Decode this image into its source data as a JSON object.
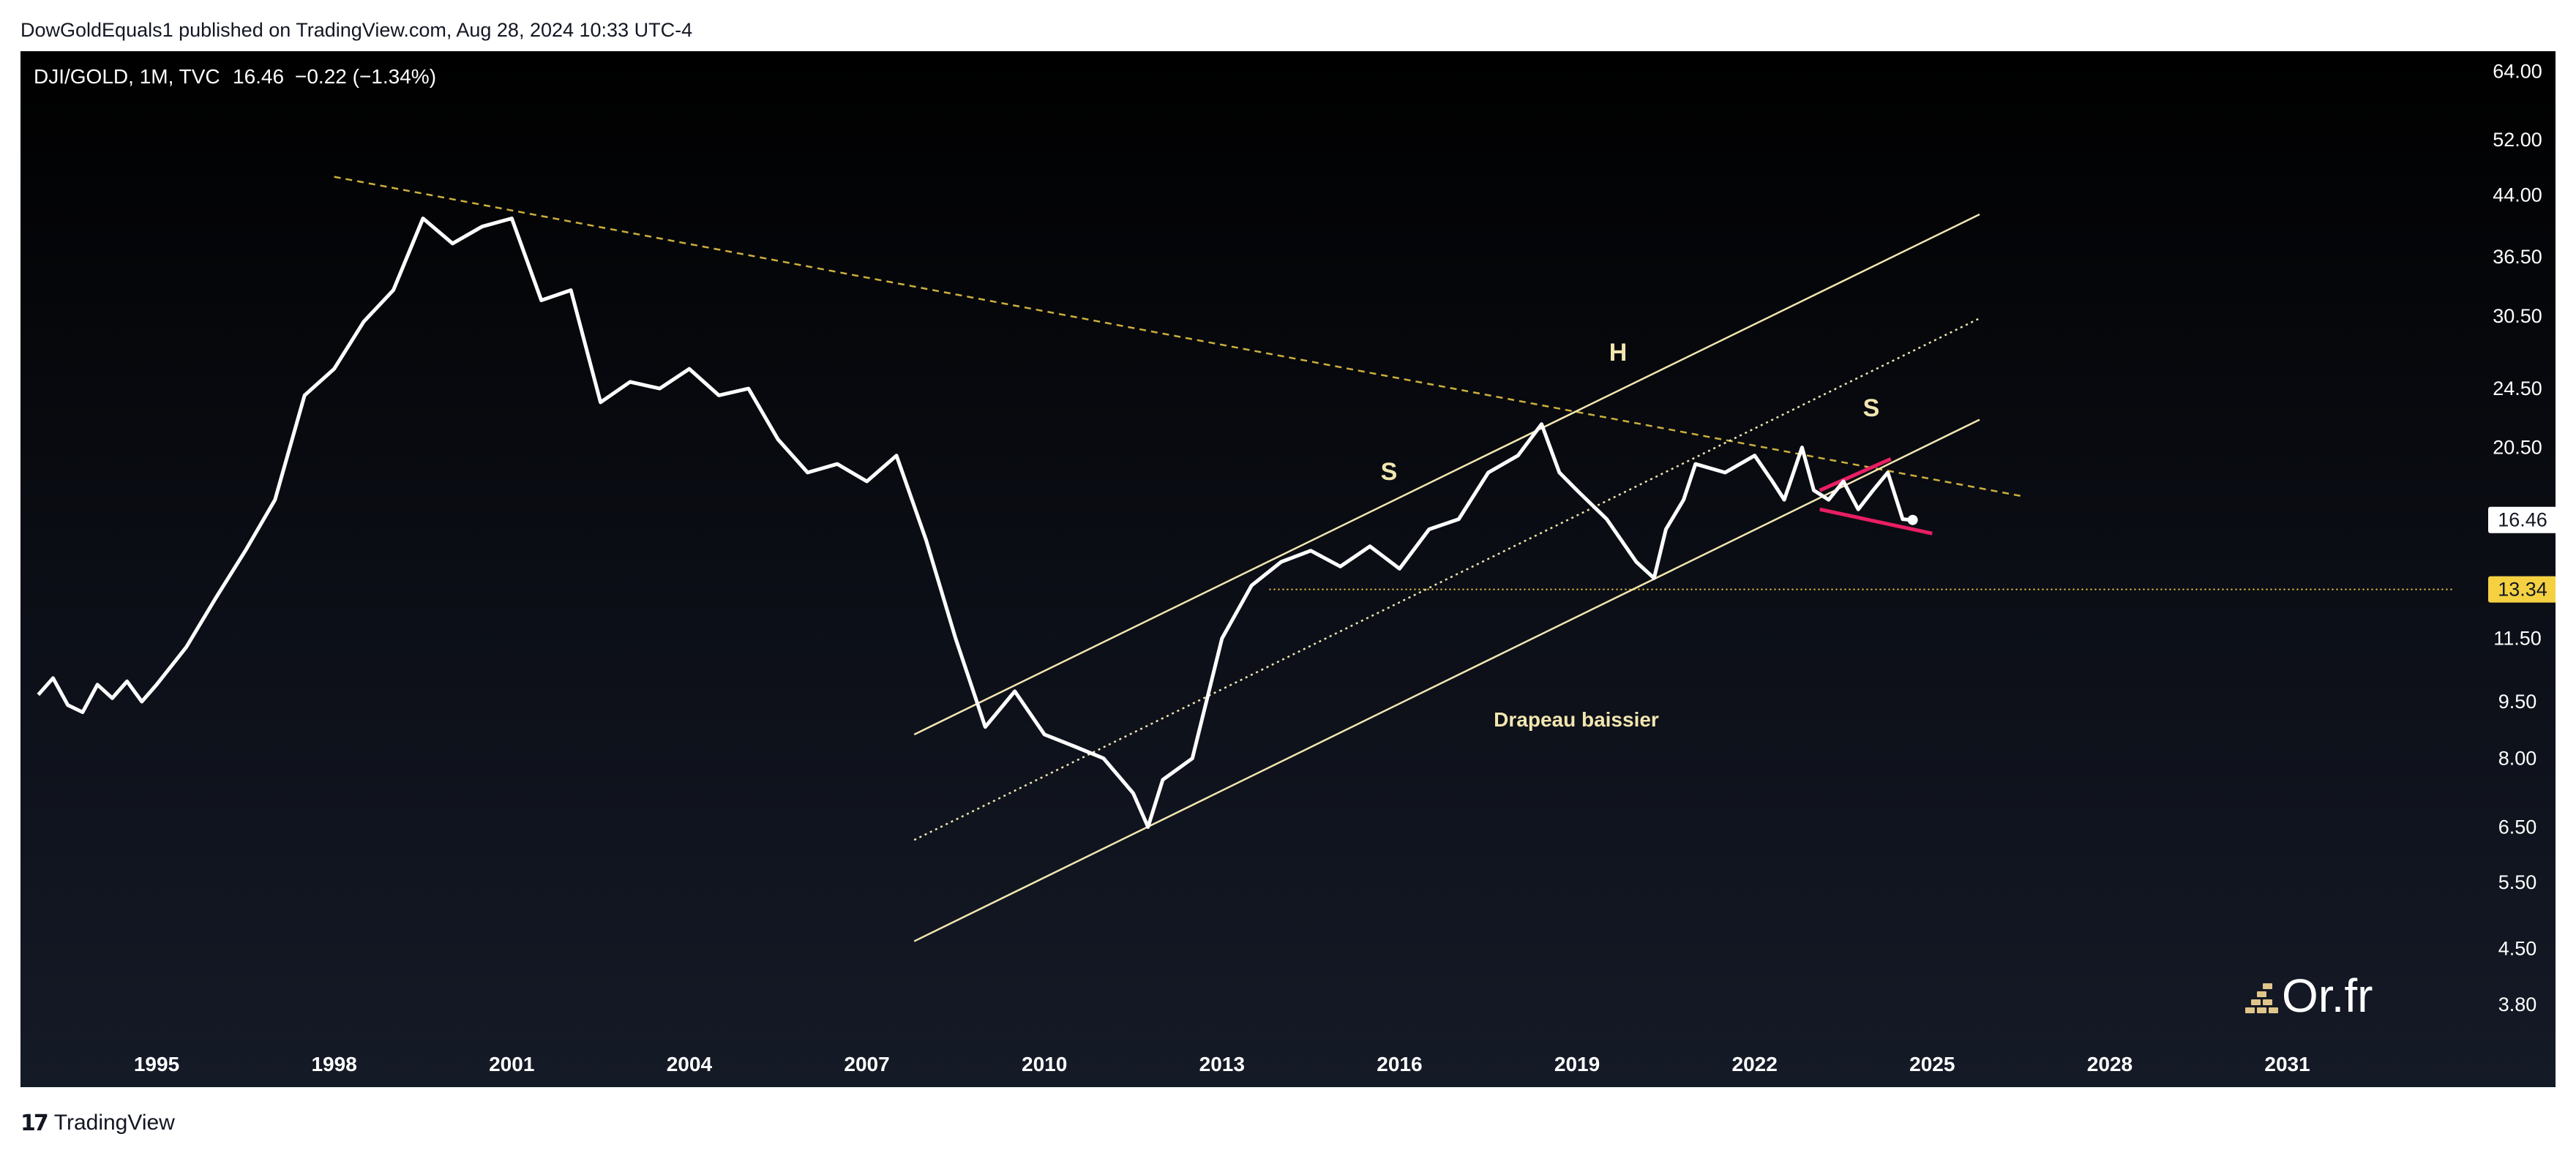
{
  "header": {
    "attribution": "DowGoldEquals1 published on TradingView.com, Aug 28, 2024 10:33 UTC-4"
  },
  "legend": {
    "symbol": "DJI/GOLD, 1M, TVC",
    "last": "16.46",
    "change": "−0.22 (−1.34%)"
  },
  "footer": {
    "brand": "TradingView"
  },
  "watermark": {
    "text": "Or.fr"
  },
  "annotations": {
    "left_shoulder": "S",
    "head": "H",
    "right_shoulder": "S",
    "pattern": "Drapeau baissier"
  },
  "price_badges": {
    "last": "16.46",
    "level": "13.34"
  },
  "colors": {
    "price_line": "#ffffff",
    "channel": "#f2e6b0",
    "trend": "#ccb03c",
    "flag": "#e91e63",
    "level": "#f5d142",
    "axis_text": "#ffffff"
  },
  "chart_data": {
    "type": "line",
    "scale": "log",
    "series": [
      {
        "x": [
          1993.0,
          1993.25,
          1993.5,
          1993.75,
          1994.0,
          1994.25,
          1994.5,
          1994.75,
          1995.0,
          1995.5,
          1996.0,
          1996.5,
          1997.0,
          1997.5,
          1998.0,
          1998.5,
          1999.0,
          1999.5,
          2000.0,
          2000.5,
          2001.0,
          2001.5,
          2002.0,
          2002.5,
          2003.0,
          2003.5,
          2004.0,
          2004.5,
          2005.0,
          2005.5,
          2006.0,
          2006.5,
          2007.0,
          2007.5,
          2008.0,
          2008.5,
          2009.0,
          2009.5,
          2010.0,
          2010.5,
          2011.0,
          2011.5,
          2011.75,
          2012.0,
          2012.5,
          2013.0,
          2013.5,
          2014.0,
          2014.5,
          2015.0,
          2015.5,
          2016.0,
          2016.5,
          2017.0,
          2017.5,
          2018.0,
          2018.4,
          2018.7,
          2019.0,
          2019.5,
          2020.0,
          2020.3,
          2020.5,
          2020.8,
          2021.0,
          2021.5,
          2022.0,
          2022.3,
          2022.5,
          2022.8,
          2023.0,
          2023.25,
          2023.5,
          2023.75,
          2024.0,
          2024.25,
          2024.5,
          2024.67
        ],
        "y": [
          9.7,
          10.2,
          9.4,
          9.2,
          10.0,
          9.6,
          10.1,
          9.5,
          10.0,
          11.2,
          13.0,
          15.0,
          17.5,
          24.0,
          26.0,
          30.0,
          33.0,
          41.0,
          38.0,
          40.0,
          41.0,
          32.0,
          33.0,
          23.5,
          25.0,
          24.5,
          26.0,
          24.0,
          24.5,
          21.0,
          19.0,
          19.5,
          18.5,
          20.0,
          15.5,
          11.5,
          8.8,
          9.8,
          8.6,
          8.3,
          8.0,
          7.2,
          6.5,
          7.5,
          8.0,
          11.5,
          13.5,
          14.5,
          15.0,
          14.3,
          15.2,
          14.2,
          16.0,
          16.5,
          19.0,
          20.0,
          22.0,
          19.0,
          18.0,
          16.5,
          14.5,
          13.8,
          16.0,
          17.5,
          19.5,
          19.0,
          20.0,
          18.5,
          17.5,
          20.5,
          18.0,
          17.5,
          18.5,
          17.0,
          18.0,
          19.0,
          16.5,
          16.46
        ]
      }
    ],
    "ylim": [
      3.5,
      68
    ],
    "xlim": [
      1992.7,
      2033.8
    ],
    "x_ticks": [
      "1995",
      "1998",
      "2001",
      "2004",
      "2007",
      "2010",
      "2013",
      "2016",
      "2019",
      "2022",
      "2025",
      "2028",
      "2031"
    ],
    "y_ticks": [
      "3.80",
      "4.50",
      "5.50",
      "6.50",
      "8.00",
      "9.50",
      "11.50",
      "13.34",
      "16.46",
      "20.50",
      "24.50",
      "30.50",
      "36.50",
      "44.00",
      "52.00",
      "64.00"
    ],
    "horizontal_line": 13.34,
    "last_value": 16.46
  }
}
